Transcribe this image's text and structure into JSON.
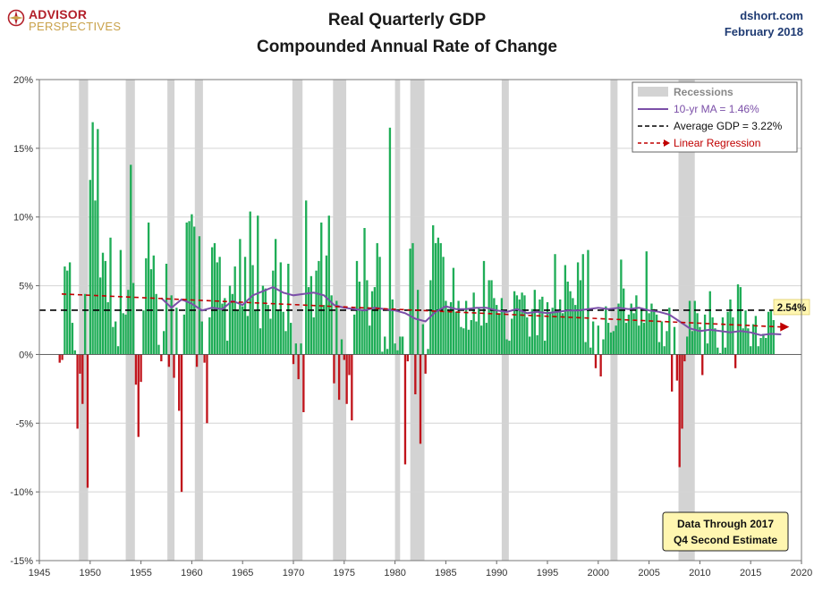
{
  "header": {
    "logo_line1": "ADVISOR",
    "logo_line2": "PERSPECTIVES",
    "title_line1": "Real Quarterly GDP",
    "title_line2": "Compounded Annual Rate of Change",
    "source": "dshort.com",
    "date": "February 2018"
  },
  "colors": {
    "positive_bar": "#1fad57",
    "negative_bar": "#c0141b",
    "recession": "#d3d3d3",
    "moving_average": "#7b4fa8",
    "average_line": "#000000",
    "regression": "#c00000",
    "callout_bg": "#fff6b0"
  },
  "chart_data": {
    "type": "bar",
    "title": "Real Quarterly GDP Compounded Annual Rate of Change",
    "xlim": [
      1945,
      2020
    ],
    "ylim": [
      -15,
      20
    ],
    "x_ticks": [
      "1945",
      "1950",
      "1955",
      "1960",
      "1965",
      "1970",
      "1975",
      "1980",
      "1985",
      "1990",
      "1995",
      "2000",
      "2005",
      "2010",
      "2015",
      "2020"
    ],
    "y_ticks": [
      "-15%",
      "-10%",
      "-5%",
      "0%",
      "5%",
      "10%",
      "15%",
      "20%"
    ],
    "grid": true,
    "legend_position": "top-right",
    "legend": [
      {
        "label": "Recessions",
        "kind": "box"
      },
      {
        "label": "10-yr MA = 1.46%",
        "kind": "line"
      },
      {
        "label": "Average GDP = 3.22%",
        "kind": "dash"
      },
      {
        "label": "Linear Regression",
        "kind": "arrow"
      }
    ],
    "recessions": [
      [
        1948.9,
        1949.8
      ],
      [
        1953.5,
        1954.4
      ],
      [
        1957.6,
        1958.3
      ],
      [
        1960.3,
        1961.1
      ],
      [
        1969.9,
        1970.9
      ],
      [
        1973.9,
        1975.2
      ],
      [
        1980.0,
        1980.5
      ],
      [
        1981.5,
        1982.9
      ],
      [
        1990.5,
        1991.2
      ],
      [
        2001.2,
        2001.9
      ],
      [
        2007.9,
        2009.5
      ]
    ],
    "average": 3.22,
    "regression": {
      "start": [
        1947.2,
        4.4
      ],
      "end": [
        2018.0,
        2.0
      ],
      "end_label": "2.54%"
    },
    "moving_average": [
      [
        1957.0,
        4.1
      ],
      [
        1958.0,
        3.4
      ],
      [
        1959.0,
        4.0
      ],
      [
        1960.0,
        3.7
      ],
      [
        1961.0,
        3.2
      ],
      [
        1962.0,
        3.4
      ],
      [
        1963.0,
        3.3
      ],
      [
        1964.0,
        3.9
      ],
      [
        1965.0,
        3.6
      ],
      [
        1966.0,
        4.3
      ],
      [
        1967.0,
        4.6
      ],
      [
        1968.0,
        4.9
      ],
      [
        1969.0,
        4.5
      ],
      [
        1970.0,
        4.3
      ],
      [
        1971.0,
        4.4
      ],
      [
        1972.0,
        4.5
      ],
      [
        1973.0,
        4.3
      ],
      [
        1974.0,
        3.6
      ],
      [
        1975.0,
        3.4
      ],
      [
        1976.0,
        3.3
      ],
      [
        1977.0,
        3.2
      ],
      [
        1978.0,
        3.4
      ],
      [
        1979.0,
        3.3
      ],
      [
        1980.0,
        3.2
      ],
      [
        1981.0,
        3.0
      ],
      [
        1982.0,
        2.6
      ],
      [
        1983.0,
        2.4
      ],
      [
        1984.0,
        3.1
      ],
      [
        1985.0,
        3.5
      ],
      [
        1986.0,
        3.3
      ],
      [
        1987.0,
        3.3
      ],
      [
        1988.0,
        3.4
      ],
      [
        1989.0,
        3.4
      ],
      [
        1990.0,
        3.2
      ],
      [
        1991.0,
        3.1
      ],
      [
        1992.0,
        3.3
      ],
      [
        1993.0,
        3.0
      ],
      [
        1994.0,
        3.1
      ],
      [
        1995.0,
        3.0
      ],
      [
        1996.0,
        3.1
      ],
      [
        1997.0,
        3.2
      ],
      [
        1998.0,
        3.2
      ],
      [
        1999.0,
        3.3
      ],
      [
        2000.0,
        3.4
      ],
      [
        2001.0,
        3.3
      ],
      [
        2002.0,
        3.4
      ],
      [
        2003.0,
        3.3
      ],
      [
        2004.0,
        3.4
      ],
      [
        2005.0,
        3.2
      ],
      [
        2006.0,
        3.1
      ],
      [
        2007.0,
        2.9
      ],
      [
        2008.0,
        2.4
      ],
      [
        2009.0,
        1.9
      ],
      [
        2010.0,
        1.7
      ],
      [
        2011.0,
        1.8
      ],
      [
        2012.0,
        1.7
      ],
      [
        2013.0,
        1.6
      ],
      [
        2014.0,
        1.7
      ],
      [
        2015.0,
        1.6
      ],
      [
        2016.0,
        1.4
      ],
      [
        2017.0,
        1.5
      ],
      [
        2018.0,
        1.46
      ]
    ],
    "series": [
      {
        "start": 1947.0,
        "step": 0.25,
        "values": [
          -0.6,
          -0.4,
          6.4,
          6.1,
          6.7,
          2.3,
          0.3,
          -5.4,
          -1.4,
          -3.6,
          4.4,
          -9.7,
          12.7,
          16.9,
          11.2,
          16.4,
          5.6,
          7.4,
          6.8,
          3.8,
          8.5,
          2.0,
          2.4,
          0.6,
          7.6,
          3.0,
          2.9,
          4.7,
          13.8,
          5.2,
          -2.2,
          -6.0,
          -2.0,
          3.2,
          7.0,
          9.6,
          6.2,
          7.2,
          4.4,
          0.7,
          -0.5,
          1.7,
          6.6,
          -0.9,
          4.3,
          -1.7,
          3.4,
          -4.1,
          -10.0,
          2.9,
          9.6,
          9.7,
          10.2,
          9.3,
          -0.9,
          8.6,
          2.4,
          -0.6,
          -5.0,
          2.7,
          7.8,
          8.1,
          6.7,
          7.1,
          3.7,
          4.1,
          1.0,
          5.0,
          4.4,
          6.4,
          3.2,
          8.4,
          3.5,
          7.1,
          2.8,
          10.4,
          6.5,
          3.2,
          10.1,
          1.9,
          5.0,
          4.8,
          3.6,
          2.6,
          6.1,
          8.4,
          3.2,
          6.7,
          3.1,
          1.7,
          6.6,
          2.3,
          -0.7,
          0.8,
          -1.8,
          0.8,
          -4.2,
          11.2,
          4.9,
          5.7,
          2.7,
          6.1,
          6.8,
          9.6,
          3.6,
          7.2,
          10.1,
          4.3,
          -2.1,
          3.9,
          -3.3,
          1.1,
          -0.4,
          -3.6,
          -1.5,
          -4.8,
          2.9,
          6.8,
          5.3,
          3.3,
          9.2,
          5.4,
          2.1,
          4.6,
          4.9,
          8.1,
          7.1,
          0.2,
          1.3,
          0.4,
          16.5,
          4.0,
          0.8,
          0.3,
          1.3,
          1.3,
          -8.0,
          -0.5,
          7.7,
          8.1,
          -2.9,
          4.7,
          -6.5,
          2.2,
          -1.4,
          0.4,
          5.4,
          9.4,
          8.1,
          8.5,
          8.1,
          7.1,
          3.9,
          3.3,
          3.8,
          6.3,
          3.1,
          3.9,
          2.0,
          1.9,
          3.9,
          1.8,
          2.5,
          4.5,
          2.4,
          3.4,
          2.1,
          6.8,
          2.3,
          5.4,
          5.4,
          4.1,
          3.6,
          3.0,
          4.1,
          3.1,
          1.1,
          1.0,
          2.6,
          4.6,
          4.3,
          4.0,
          4.5,
          4.3,
          2.7,
          1.3,
          3.3,
          4.7,
          1.4,
          4.0,
          4.2,
          1.0,
          3.8,
          3.1,
          3.4,
          7.3,
          3.2,
          4.0,
          3.0,
          6.5,
          5.3,
          4.6,
          4.1,
          3.6,
          6.7,
          5.4,
          7.3,
          0.9,
          7.6,
          0.5,
          2.4,
          -1.0,
          2.1,
          -1.6,
          1.1,
          3.5,
          2.3,
          1.6,
          1.7,
          2.1,
          3.7,
          6.9,
          4.8,
          2.3,
          2.9,
          3.7,
          3.0,
          4.3,
          2.1,
          3.4,
          2.3,
          7.5,
          3.0,
          3.7,
          3.3,
          2.9,
          0.9,
          2.4,
          0.6,
          1.7,
          3.4,
          -2.7,
          2.0,
          -1.9,
          -8.2,
          -5.4,
          -0.5,
          1.3,
          3.9,
          1.7,
          3.9,
          3.0,
          2.0,
          -1.5,
          2.9,
          0.8,
          4.6,
          2.7,
          1.9,
          0.5,
          0.1,
          2.7,
          0.5,
          3.1,
          4.0,
          2.7,
          -1.0,
          5.1,
          4.9,
          1.9,
          3.2,
          1.9,
          0.6,
          2.2,
          2.8,
          0.6,
          1.2,
          1.5,
          1.2,
          3.1,
          3.2,
          2.5
        ]
      }
    ]
  },
  "callout": {
    "line1": "Data Through 2017",
    "line2": "Q4 Second Estimate"
  }
}
